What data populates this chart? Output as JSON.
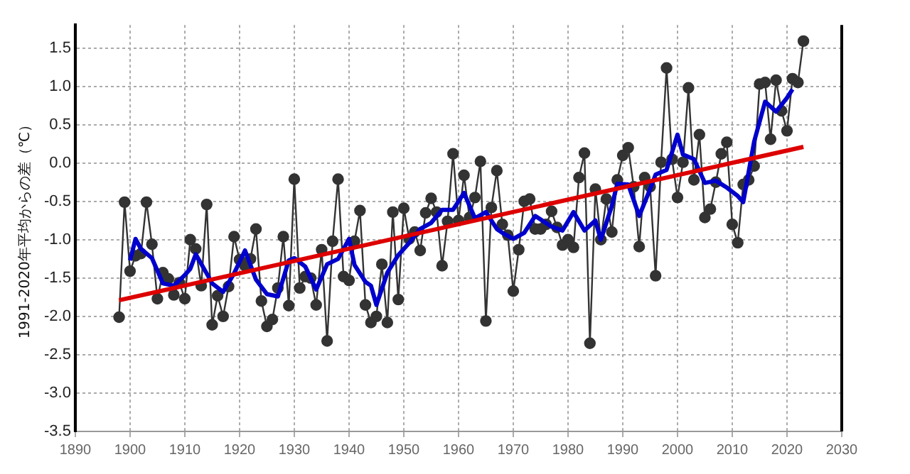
{
  "chart_data": {
    "type": "line",
    "ylabel": "1991-2020年平均からの差（℃）",
    "xlim": [
      1890,
      2030
    ],
    "xticks": [
      1890,
      1900,
      1910,
      1920,
      1930,
      1940,
      1950,
      1960,
      1970,
      1980,
      1990,
      2000,
      2010,
      2020,
      2030
    ],
    "ylim": [
      -3.5,
      1.8
    ],
    "yticks": [
      {
        "value": -3.5,
        "label": "-3.5"
      },
      {
        "value": -3,
        "label": "-3.0"
      },
      {
        "value": -2.5,
        "label": "-2.5"
      },
      {
        "value": -2,
        "label": "-2.0"
      },
      {
        "value": -1.5,
        "label": "-1.5"
      },
      {
        "value": -1,
        "label": "-1.0"
      },
      {
        "value": -0.5,
        "label": "-0.5"
      },
      {
        "value": 0,
        "label": "0.0"
      },
      {
        "value": 0.5,
        "label": "0.5"
      },
      {
        "value": 1,
        "label": "1.0"
      },
      {
        "value": 1.5,
        "label": "1.5"
      }
    ],
    "grid": true,
    "legend": false,
    "line_style": "solid",
    "series": [
      {
        "color": "#333333",
        "marker": "circle",
        "x": [
          1898,
          1899,
          1900,
          1901,
          1902,
          1903,
          1904,
          1905,
          1906,
          1907,
          1908,
          1909,
          1910,
          1911,
          1912,
          1913,
          1914,
          1915,
          1916,
          1917,
          1918,
          1919,
          1920,
          1921,
          1922,
          1923,
          1924,
          1925,
          1926,
          1927,
          1928,
          1929,
          1930,
          1931,
          1932,
          1933,
          1934,
          1935,
          1936,
          1937,
          1938,
          1939,
          1940,
          1941,
          1942,
          1943,
          1944,
          1945,
          1946,
          1947,
          1948,
          1949,
          1950,
          1951,
          1952,
          1953,
          1954,
          1955,
          1956,
          1957,
          1958,
          1959,
          1960,
          1961,
          1962,
          1963,
          1964,
          1965,
          1966,
          1967,
          1968,
          1969,
          1970,
          1971,
          1972,
          1973,
          1974,
          1975,
          1976,
          1977,
          1978,
          1979,
          1980,
          1981,
          1982,
          1983,
          1984,
          1985,
          1986,
          1987,
          1988,
          1989,
          1990,
          1991,
          1992,
          1993,
          1994,
          1995,
          1996,
          1997,
          1998,
          1999,
          2000,
          2001,
          2002,
          2003,
          2004,
          2005,
          2006,
          2007,
          2008,
          2009,
          2010,
          2011,
          2012,
          2013,
          2014,
          2015,
          2016,
          2017,
          2018,
          2019,
          2020,
          2021,
          2022,
          2023
        ],
        "values": [
          -2.01,
          -0.51,
          -1.41,
          -1.21,
          -1.18,
          -0.51,
          -1.06,
          -1.77,
          -1.43,
          -1.51,
          -1.72,
          -1.56,
          -1.77,
          -1.0,
          -1.12,
          -1.6,
          -0.54,
          -2.11,
          -1.73,
          -2.0,
          -1.61,
          -0.96,
          -1.26,
          -1.34,
          -1.25,
          -0.86,
          -1.8,
          -2.13,
          -2.04,
          -1.63,
          -0.96,
          -1.86,
          -0.21,
          -1.63,
          -1.48,
          -1.5,
          -1.85,
          -1.13,
          -2.32,
          -1.02,
          -0.21,
          -1.48,
          -1.53,
          -1.02,
          -0.62,
          -1.85,
          -2.08,
          -2.0,
          -1.32,
          -2.08,
          -0.64,
          -1.78,
          -0.59,
          -0.99,
          -0.9,
          -1.14,
          -0.65,
          -0.46,
          -0.64,
          -1.34,
          -0.76,
          0.12,
          -0.75,
          -0.16,
          -0.71,
          -0.45,
          0.02,
          -2.06,
          -0.58,
          -0.1,
          -0.8,
          -0.94,
          -1.67,
          -1.13,
          -0.5,
          -0.47,
          -0.86,
          -0.86,
          -0.8,
          -0.63,
          -0.84,
          -1.07,
          -1.0,
          -1.1,
          -0.19,
          0.13,
          -2.35,
          -0.34,
          -1.0,
          -0.47,
          -0.9,
          -0.22,
          0.1,
          0.2,
          -0.31,
          -1.09,
          -0.19,
          -0.31,
          -1.47,
          0.01,
          1.24,
          0.05,
          -0.45,
          0.01,
          0.98,
          -0.22,
          0.37,
          -0.71,
          -0.6,
          -0.25,
          0.12,
          0.27,
          -0.8,
          -1.04,
          -0.28,
          -0.22,
          -0.04,
          1.03,
          1.05,
          0.31,
          1.08,
          0.68,
          0.42,
          1.1,
          1.05,
          1.59
        ]
      },
      {
        "color": "#0000cc",
        "marker": "none",
        "x": [
          1900,
          1901,
          1902,
          1904,
          1906,
          1908,
          1910,
          1911,
          1912,
          1914,
          1915,
          1917,
          1919,
          1921,
          1923,
          1925,
          1927,
          1929,
          1930,
          1932,
          1934,
          1936,
          1938,
          1940,
          1941,
          1943,
          1944,
          1945,
          1947,
          1949,
          1951,
          1953,
          1955,
          1957,
          1959,
          1961,
          1963,
          1965,
          1967,
          1968,
          1970,
          1972,
          1974,
          1977,
          1979,
          1981,
          1983,
          1985,
          1986,
          1988,
          1989,
          1991,
          1993,
          1995,
          1996,
          1998,
          2000,
          2001,
          2003,
          2005,
          2007,
          2009,
          2011,
          2012,
          2014,
          2016,
          2018,
          2020,
          2021
        ],
        "values": [
          -1.27,
          -0.99,
          -1.12,
          -1.24,
          -1.57,
          -1.6,
          -1.46,
          -1.38,
          -1.19,
          -1.44,
          -1.57,
          -1.68,
          -1.44,
          -1.14,
          -1.52,
          -1.71,
          -1.74,
          -1.27,
          -1.24,
          -1.35,
          -1.65,
          -1.32,
          -1.25,
          -0.99,
          -1.33,
          -1.55,
          -1.6,
          -1.85,
          -1.43,
          -1.2,
          -1.04,
          -0.86,
          -0.78,
          -0.61,
          -0.61,
          -0.39,
          -0.72,
          -0.64,
          -0.86,
          -0.91,
          -0.99,
          -0.91,
          -0.69,
          -0.83,
          -0.88,
          -0.64,
          -0.88,
          -0.75,
          -1.0,
          -0.56,
          -0.27,
          -0.28,
          -0.69,
          -0.34,
          -0.15,
          -0.09,
          0.37,
          0.11,
          0.05,
          -0.26,
          -0.23,
          -0.32,
          -0.43,
          -0.51,
          0.28,
          0.8,
          0.67,
          0.85,
          0.96
        ]
      },
      {
        "color": "#dd0000",
        "marker": "none",
        "x": [
          1898,
          2023
        ],
        "values": [
          -1.79,
          0.21
        ]
      }
    ]
  }
}
